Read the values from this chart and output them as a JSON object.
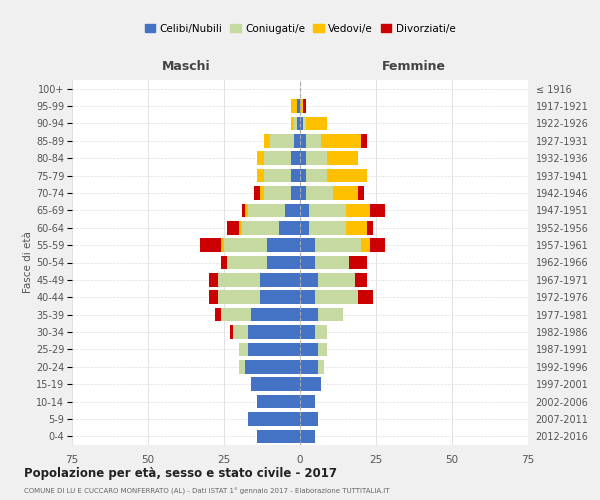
{
  "age_groups": [
    "0-4",
    "5-9",
    "10-14",
    "15-19",
    "20-24",
    "25-29",
    "30-34",
    "35-39",
    "40-44",
    "45-49",
    "50-54",
    "55-59",
    "60-64",
    "65-69",
    "70-74",
    "75-79",
    "80-84",
    "85-89",
    "90-94",
    "95-99",
    "100+"
  ],
  "birth_years": [
    "2012-2016",
    "2007-2011",
    "2002-2006",
    "1997-2001",
    "1992-1996",
    "1987-1991",
    "1982-1986",
    "1977-1981",
    "1972-1976",
    "1967-1971",
    "1962-1966",
    "1957-1961",
    "1952-1956",
    "1947-1951",
    "1942-1946",
    "1937-1941",
    "1932-1936",
    "1927-1931",
    "1922-1926",
    "1917-1921",
    "≤ 1916"
  ],
  "maschi": {
    "celibi": [
      14,
      17,
      14,
      16,
      18,
      17,
      17,
      16,
      13,
      13,
      11,
      11,
      7,
      5,
      3,
      3,
      3,
      2,
      1,
      1,
      0
    ],
    "coniugati": [
      0,
      0,
      0,
      0,
      2,
      3,
      5,
      10,
      14,
      14,
      13,
      14,
      12,
      12,
      9,
      9,
      9,
      8,
      1,
      0,
      0
    ],
    "vedovi": [
      0,
      0,
      0,
      0,
      0,
      0,
      0,
      0,
      0,
      0,
      0,
      1,
      1,
      1,
      1,
      2,
      2,
      2,
      1,
      2,
      0
    ],
    "divorziati": [
      0,
      0,
      0,
      0,
      0,
      0,
      1,
      2,
      3,
      3,
      2,
      7,
      4,
      1,
      2,
      0,
      0,
      0,
      0,
      0,
      0
    ]
  },
  "femmine": {
    "nubili": [
      5,
      6,
      5,
      7,
      6,
      6,
      5,
      6,
      5,
      6,
      5,
      5,
      3,
      3,
      2,
      2,
      2,
      2,
      1,
      0,
      0
    ],
    "coniugate": [
      0,
      0,
      0,
      0,
      2,
      3,
      4,
      8,
      14,
      12,
      11,
      15,
      12,
      12,
      9,
      7,
      7,
      5,
      1,
      0,
      0
    ],
    "vedove": [
      0,
      0,
      0,
      0,
      0,
      0,
      0,
      0,
      0,
      0,
      0,
      3,
      7,
      8,
      8,
      13,
      10,
      13,
      7,
      1,
      0
    ],
    "divorziate": [
      0,
      0,
      0,
      0,
      0,
      0,
      0,
      0,
      5,
      4,
      6,
      5,
      2,
      5,
      2,
      0,
      0,
      2,
      0,
      1,
      0
    ]
  },
  "colors": {
    "celibi": "#4472c4",
    "coniugati": "#c5d9a0",
    "vedovi": "#ffc000",
    "divorziati": "#cc0000"
  },
  "xlim": 75,
  "title": "Popolazione per età, sesso e stato civile - 2017",
  "subtitle": "COMUNE DI LU E CUCCARO MONFERRATO (AL) - Dati ISTAT 1° gennaio 2017 - Elaborazione TUTTITALIA.IT",
  "left_label": "Maschi",
  "right_label": "Femmine",
  "ylabel": "Fasce di età",
  "legend_labels": [
    "Celibi/Nubili",
    "Coniugati/e",
    "Vedovi/e",
    "Divorziati/e"
  ],
  "bg_color": "#f0f0f0",
  "plot_bg_color": "#ffffff"
}
